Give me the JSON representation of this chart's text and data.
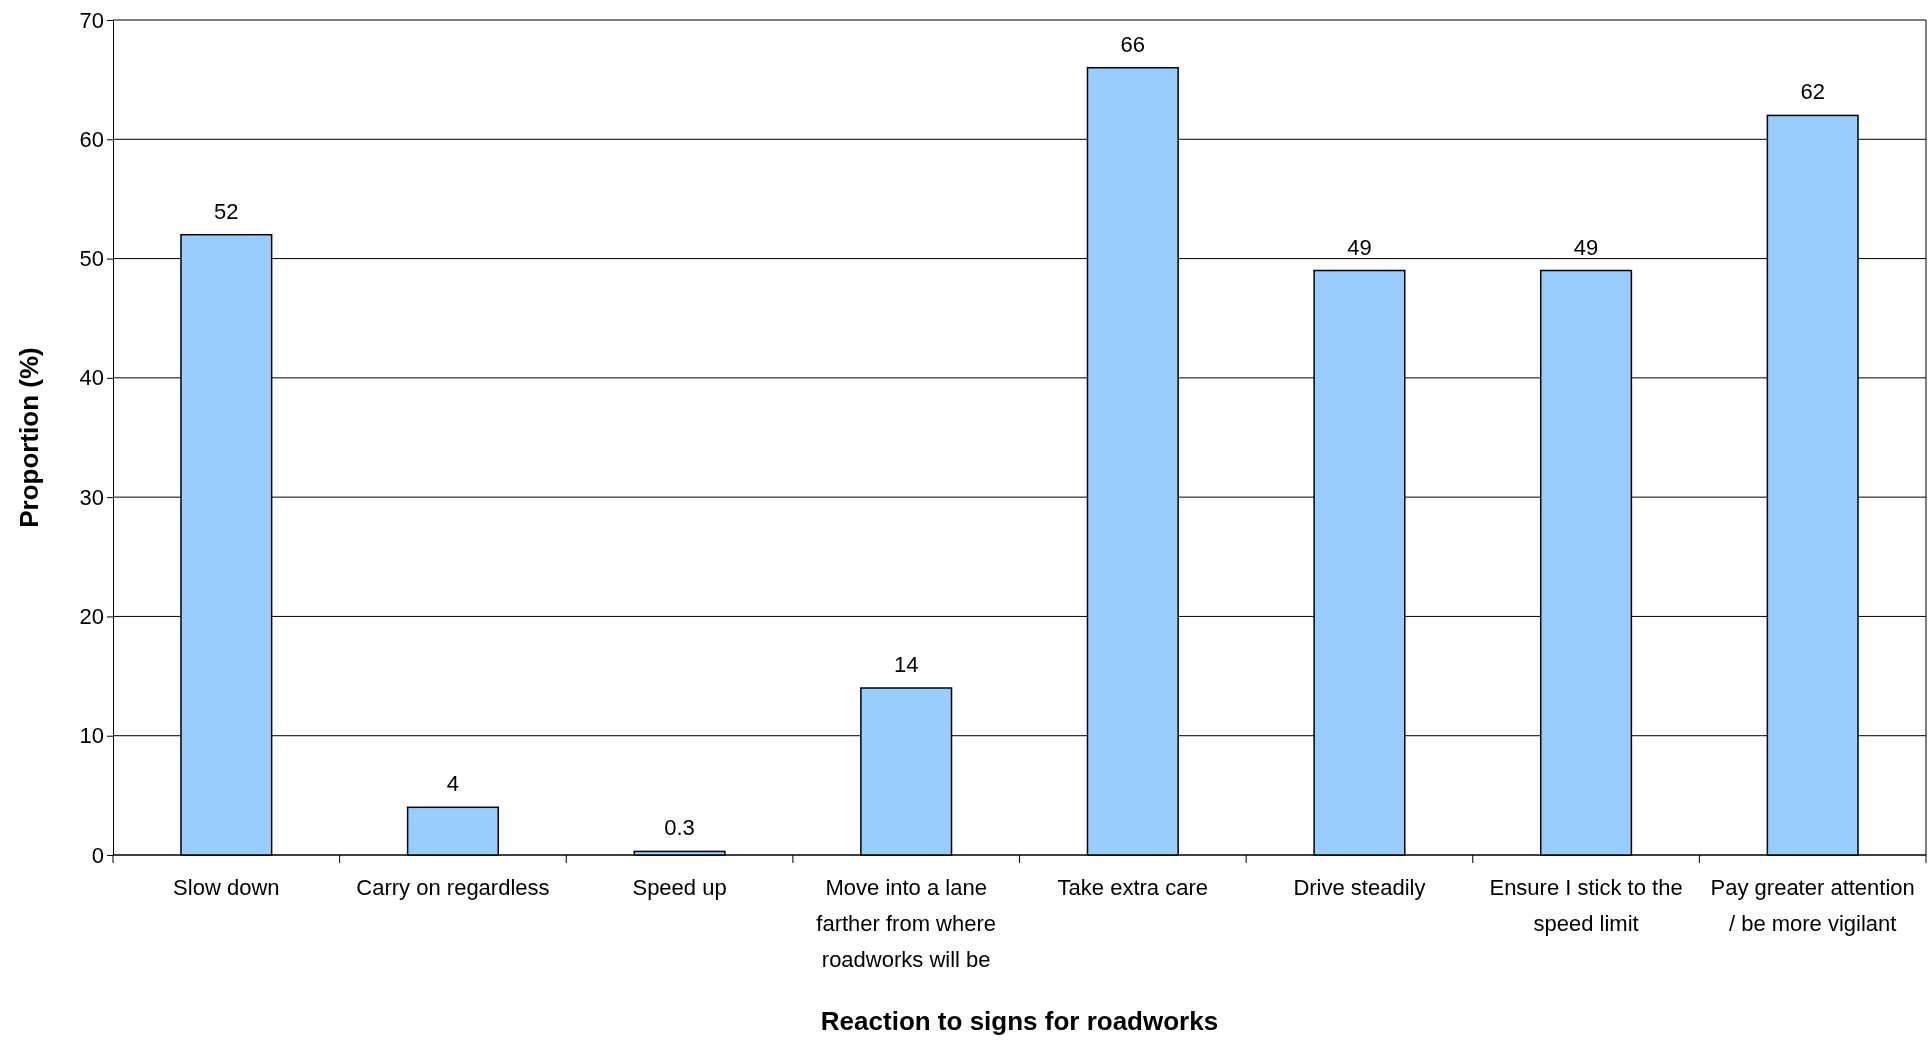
{
  "chart_data": {
    "type": "bar",
    "xlabel": "Reaction to signs for roadworks",
    "ylabel": "Proportion (%)",
    "categories": [
      "Slow down",
      "Carry on regardless",
      "Speed up",
      "Move into a lane farther from where roadworks will be",
      "Take extra care",
      "Drive steadily",
      "Ensure I stick to the speed limit",
      "Pay greater attention / be more vigilant"
    ],
    "values": [
      52,
      4,
      0.3,
      14,
      66,
      49,
      49,
      62
    ],
    "color": "#99ccff",
    "ylim": [
      0,
      70
    ],
    "yticks": [
      0,
      10,
      20,
      30,
      40,
      50,
      60,
      70
    ],
    "grid": "y",
    "data_labels": true
  }
}
